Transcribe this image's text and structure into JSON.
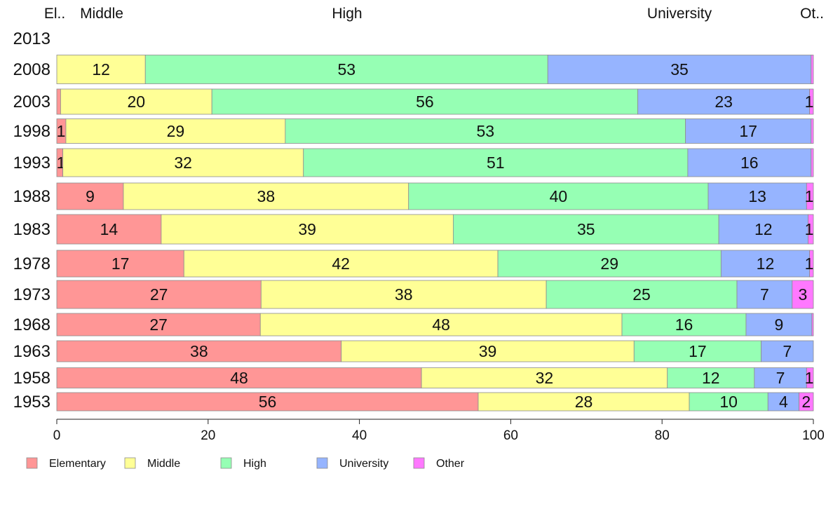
{
  "chart_data": {
    "type": "bar",
    "orientation": "horizontal",
    "stacked": true,
    "xlim": [
      0,
      100
    ],
    "x_ticks": [
      0,
      20,
      40,
      60,
      80,
      100
    ],
    "categories": [
      "2013",
      "2008",
      "2003",
      "1998",
      "1993",
      "1988",
      "1983",
      "1978",
      "1973",
      "1968",
      "1963",
      "1958",
      "1953"
    ],
    "top_labels": [
      "El..",
      "Middle",
      "High",
      "University",
      "Ot.."
    ],
    "legend_position": "bottom-left",
    "grid": false,
    "series": [
      {
        "name": "Elementary",
        "color": "#ff9696",
        "values": [
          null,
          0,
          0.5,
          1.2,
          0.8,
          8.8,
          13.8,
          16.8,
          27.0,
          26.9,
          37.6,
          48.2,
          55.7
        ]
      },
      {
        "name": "Middle",
        "color": "#ffff96",
        "values": [
          null,
          11.7,
          20.0,
          29.0,
          31.8,
          37.7,
          38.6,
          41.5,
          37.7,
          47.8,
          38.7,
          32.5,
          27.9
        ]
      },
      {
        "name": "High",
        "color": "#96ffb4",
        "values": [
          null,
          53.2,
          56.3,
          52.9,
          50.8,
          39.6,
          35.1,
          29.5,
          25.2,
          16.4,
          16.8,
          11.5,
          10.4
        ]
      },
      {
        "name": "University",
        "color": "#96b4ff",
        "values": [
          null,
          34.8,
          22.7,
          16.6,
          16.3,
          13.0,
          11.8,
          11.7,
          7.3,
          8.7,
          6.9,
          6.9,
          4.1
        ]
      },
      {
        "name": "Other",
        "color": "#ff78ff",
        "values": [
          null,
          0.3,
          0.5,
          0.3,
          0.3,
          0.9,
          0.7,
          0.5,
          2.8,
          0.2,
          0.0,
          0.9,
          1.9
        ]
      }
    ],
    "data_labels": [
      [
        null,
        null,
        null,
        null,
        null
      ],
      [
        null,
        "12",
        "53",
        "35",
        null
      ],
      [
        null,
        "20",
        "56",
        "23",
        "1"
      ],
      [
        "1",
        "29",
        "53",
        "17",
        null
      ],
      [
        "1",
        "32",
        "51",
        "16",
        null
      ],
      [
        "9",
        "38",
        "40",
        "13",
        "1"
      ],
      [
        "14",
        "39",
        "35",
        "12",
        "1"
      ],
      [
        "17",
        "42",
        "29",
        "12",
        "1"
      ],
      [
        "27",
        "38",
        "25",
        "7",
        "3"
      ],
      [
        "27",
        "48",
        "16",
        "9",
        null
      ],
      [
        "38",
        "39",
        "17",
        "7",
        null
      ],
      [
        "48",
        "32",
        "12",
        "7",
        "1"
      ],
      [
        "56",
        "28",
        "10",
        "4",
        "2"
      ]
    ]
  }
}
